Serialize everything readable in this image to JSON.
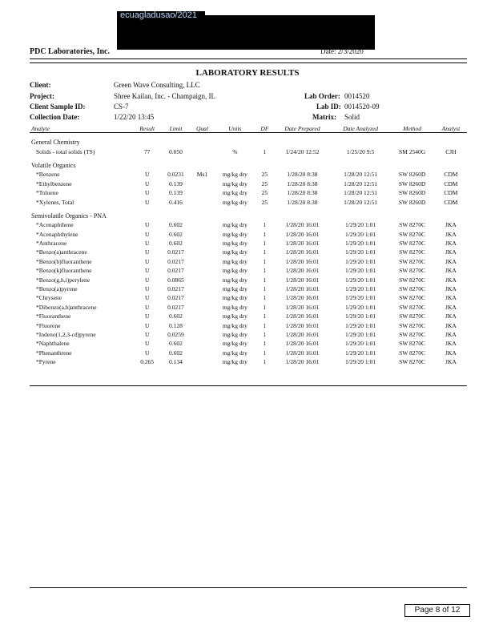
{
  "stamp_text": "ecuagladusao/2021",
  "lab_name": "PDC Laboratories, Inc.",
  "date_label": "Date:",
  "date_value": "2/3/2020",
  "title": "LABORATORY RESULTS",
  "client_label": "Client:",
  "client": "Green Wave Consulting, LLC",
  "project_label": "Project:",
  "project": "Shree Kailan, Inc. - Champaign, IL",
  "sample_label": "Client Sample ID:",
  "sample": "CS-7",
  "collection_label": "Collection Date:",
  "collection": "1/22/20 13:45",
  "laborder_label": "Lab Order:",
  "laborder": "0014520",
  "labid_label": "Lab ID:",
  "labid": "0014520-09",
  "matrix_label": "Matrix:",
  "matrix": "Solid",
  "columns": [
    "Analyte",
    "Result",
    "Limit",
    "Qual",
    "Units",
    "DF",
    "Date Prepared",
    "Date Analyzed",
    "Method",
    "Analyst"
  ],
  "sections": [
    {
      "name": "General Chemistry",
      "rows": [
        [
          "Solids - total solids (TS)",
          "77",
          "0.050",
          "",
          "%",
          "1",
          "1/24/20 12:52",
          "1/25/20 9:5",
          "SM 2540G",
          "CJH"
        ]
      ]
    },
    {
      "name": "Volatile Organics",
      "rows": [
        [
          "*Benzene",
          "U",
          "0.0231",
          "Ms1",
          "mg/kg dry",
          "25",
          "1/28/20 8:38",
          "1/28/20 12:51",
          "SW 8260D",
          "CDM"
        ],
        [
          "*Ethylbenzene",
          "U",
          "0.139",
          "",
          "mg/kg dry",
          "25",
          "1/28/20 8:38",
          "1/28/20 12:51",
          "SW 8260D",
          "CDM"
        ],
        [
          "*Toluene",
          "U",
          "0.139",
          "",
          "mg/kg dry",
          "25",
          "1/28/20 8:38",
          "1/28/20 12:51",
          "SW 8260D",
          "CDM"
        ],
        [
          "*Xylenes, Total",
          "U",
          "0.416",
          "",
          "mg/kg dry",
          "25",
          "1/28/20 8:38",
          "1/28/20 12:51",
          "SW 8260D",
          "CDM"
        ]
      ]
    },
    {
      "name": "Semivolatile Organics - PNA",
      "rows": [
        [
          "*Acenaphthene",
          "U",
          "0.602",
          "",
          "mg/kg dry",
          "1",
          "1/28/20 16:01",
          "1/29/20 1:01",
          "SW 8270C",
          "JKA"
        ],
        [
          "*Acenaphthylene",
          "U",
          "0.602",
          "",
          "mg/kg dry",
          "1",
          "1/28/20 16:01",
          "1/29/20 1:01",
          "SW 8270C",
          "JKA"
        ],
        [
          "*Anthracene",
          "U",
          "0.602",
          "",
          "mg/kg dry",
          "1",
          "1/28/20 16:01",
          "1/29/20 1:01",
          "SW 8270C",
          "JKA"
        ],
        [
          "*Benzo(a)anthracene",
          "U",
          "0.0217",
          "",
          "mg/kg dry",
          "1",
          "1/28/20 16:01",
          "1/29/20 1:01",
          "SW 8270C",
          "JKA"
        ],
        [
          "*Benzo(b)fluoranthene",
          "U",
          "0.0217",
          "",
          "mg/kg dry",
          "1",
          "1/28/20 16:01",
          "1/29/20 1:01",
          "SW 8270C",
          "JKA"
        ],
        [
          "*Benzo(k)fluoranthene",
          "U",
          "0.0217",
          "",
          "mg/kg dry",
          "1",
          "1/28/20 16:01",
          "1/29/20 1:01",
          "SW 8270C",
          "JKA"
        ],
        [
          "*Benzo(g,h,i)perylene",
          "U",
          "0.0865",
          "",
          "mg/kg dry",
          "1",
          "1/28/20 16:01",
          "1/29/20 1:01",
          "SW 8270C",
          "JKA"
        ],
        [
          "*Benzo(a)pyrene",
          "U",
          "0.0217",
          "",
          "mg/kg dry",
          "1",
          "1/28/20 16:01",
          "1/29/20 1:01",
          "SW 8270C",
          "JKA"
        ],
        [
          "*Chrysene",
          "U",
          "0.0217",
          "",
          "mg/kg dry",
          "1",
          "1/28/20 16:01",
          "1/29/20 1:01",
          "SW 8270C",
          "JKA"
        ],
        [
          "*Dibenzo(a,h)anthracene",
          "U",
          "0.0217",
          "",
          "mg/kg dry",
          "1",
          "1/28/20 16:01",
          "1/29/20 1:01",
          "SW 8270C",
          "JKA"
        ],
        [
          "*Fluoranthene",
          "U",
          "0.602",
          "",
          "mg/kg dry",
          "1",
          "1/28/20 16:01",
          "1/29/20 1:01",
          "SW 8270C",
          "JKA"
        ],
        [
          "*Fluorene",
          "U",
          "0.128",
          "",
          "mg/kg dry",
          "1",
          "1/28/20 16:01",
          "1/29/20 1:01",
          "SW 8270C",
          "JKA"
        ],
        [
          "*Indeno(1,2,3-cd)pyrene",
          "U",
          "0.0259",
          "",
          "mg/kg dry",
          "1",
          "1/28/20 16:01",
          "1/29/20 1:01",
          "SW 8270C",
          "JKA"
        ],
        [
          "*Naphthalene",
          "U",
          "0.602",
          "",
          "mg/kg dry",
          "1",
          "1/28/20 16:01",
          "1/29/20 1:01",
          "SW 8270C",
          "JKA"
        ],
        [
          "*Phenanthrene",
          "U",
          "0.602",
          "",
          "mg/kg dry",
          "1",
          "1/28/20 16:01",
          "1/29/20 1:01",
          "SW 8270C",
          "JKA"
        ],
        [
          "*Pyrene",
          "0.265",
          "0.134",
          "",
          "mg/kg dry",
          "1",
          "1/28/20 16:01",
          "1/29/20 1:01",
          "SW 8270C",
          "JKA"
        ]
      ]
    }
  ],
  "footer": "Page 8 of 12"
}
